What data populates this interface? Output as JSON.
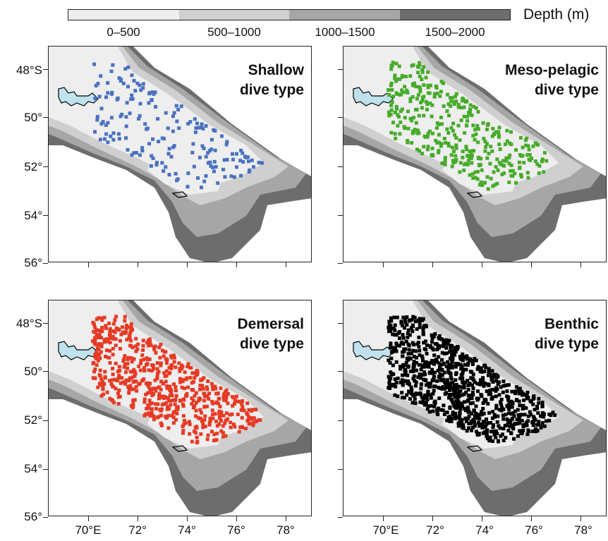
{
  "legend": {
    "title": "Depth (m)",
    "bins": [
      {
        "label": "0–500",
        "color": "#eeeeee"
      },
      {
        "label": "500–1000",
        "color": "#cfcfcf"
      },
      {
        "label": "1000–1500",
        "color": "#a6a6a6"
      },
      {
        "label": "1500–2000",
        "color": "#6d6d6d"
      }
    ]
  },
  "axes": {
    "lat_labels": [
      "48°S",
      "50°",
      "52°",
      "54°",
      "56°"
    ],
    "lon_labels": [
      "70°E",
      "72°",
      "74°",
      "76°",
      "78°"
    ],
    "lon_range": [
      68.5,
      79
    ],
    "lat_range": [
      -56.2,
      -47.3
    ]
  },
  "panels": [
    {
      "id": "shallow",
      "title_line1": "Shallow",
      "title_line2": "dive type",
      "color": "#4a72c0",
      "density": "low"
    },
    {
      "id": "mesopelagic",
      "title_line1": "Meso-pelagic",
      "title_line2": "dive type",
      "color": "#46ab2a",
      "density": "medium"
    },
    {
      "id": "demersal",
      "title_line1": "Demersal",
      "title_line2": "dive type",
      "color": "#e63a25",
      "density": "high"
    },
    {
      "id": "benthic",
      "title_line1": "Benthic",
      "title_line2": "dive type",
      "color": "#000000",
      "density": "very-high"
    }
  ],
  "features": {
    "island_color": "#bfe2ee"
  }
}
